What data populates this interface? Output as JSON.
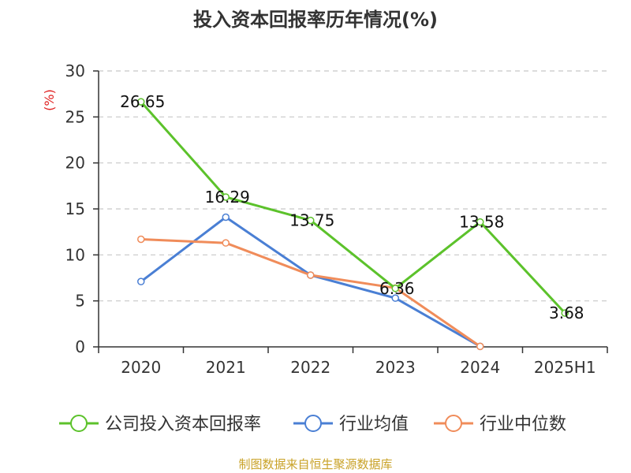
{
  "chart_data": {
    "type": "line",
    "title": "投入资本回报率历年情况(%)",
    "ylabel": "(%)",
    "xlabel": "",
    "categories": [
      "2020",
      "2021",
      "2022",
      "2023",
      "2024",
      "2025H1"
    ],
    "ylim": [
      0,
      30
    ],
    "yticks": [
      0,
      5,
      10,
      15,
      20,
      25,
      30
    ],
    "grid": true,
    "legend_position": "bottom",
    "series": [
      {
        "name": "公司投入资本回报率",
        "color": "#5cc22b",
        "values": [
          26.65,
          16.29,
          13.75,
          6.36,
          13.58,
          3.68
        ],
        "labels": [
          "26.65",
          "16.29",
          "13.75",
          "6.36",
          "13.58",
          "3.68"
        ]
      },
      {
        "name": "行业均值",
        "color": "#4a7fd4",
        "values": [
          7.1,
          14.1,
          7.8,
          5.3,
          0.05,
          null
        ]
      },
      {
        "name": "行业中位数",
        "color": "#f08c5a",
        "values": [
          11.7,
          11.3,
          7.8,
          6.4,
          0.05,
          null
        ]
      }
    ],
    "source": "制图数据来自恒生聚源数据库"
  }
}
